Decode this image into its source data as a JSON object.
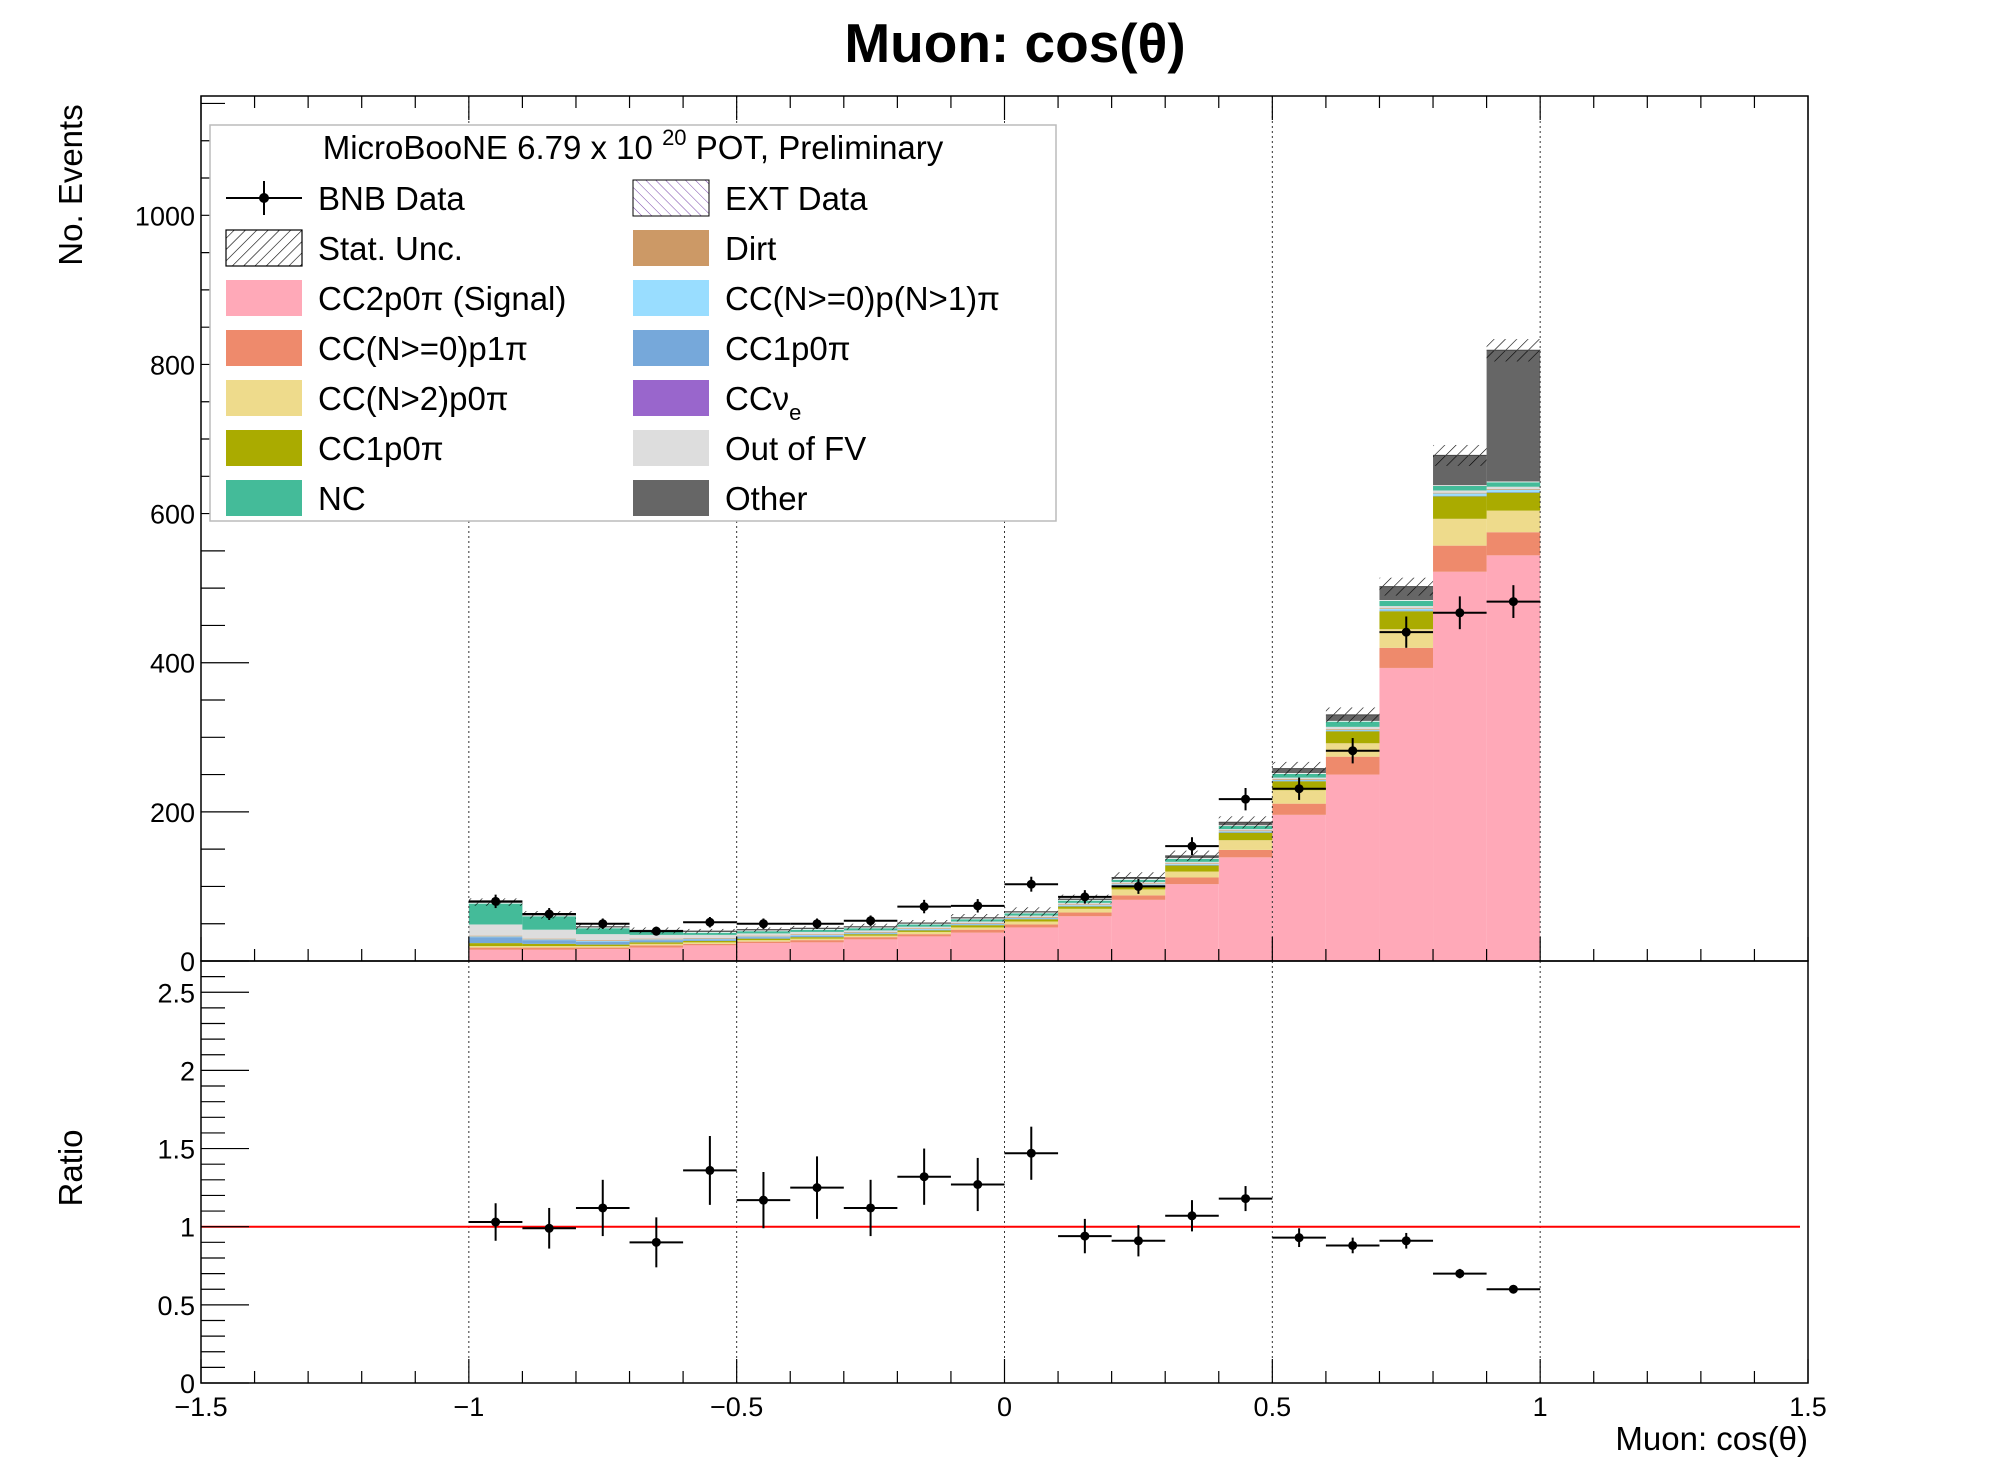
{
  "chart_data": {
    "type": "bar",
    "title": "Muon: cos(θ)",
    "xlabel": "Muon: cos(θ)",
    "ylabel_top": "No. Events",
    "ylabel_bottom": "Ratio",
    "xlim": [
      -1.5,
      1.5
    ],
    "ylim_top": [
      0,
      1160
    ],
    "ylim_bottom": [
      0,
      2.7
    ],
    "x_ticks": [
      -1.5,
      -1,
      -0.5,
      0,
      0.5,
      1,
      1.5
    ],
    "x_tick_labels": [
      "−1.5",
      "−1",
      "−0.5",
      "0",
      "0.5",
      "1",
      "1.5"
    ],
    "y_ticks_top": [
      0,
      200,
      400,
      600,
      800,
      1000
    ],
    "y_tick_labels_top": [
      "0",
      "200",
      "400",
      "600",
      "800",
      "1000"
    ],
    "y_ticks_bottom": [
      0,
      0.5,
      1,
      1.5,
      2,
      2.5
    ],
    "y_tick_labels_bottom": [
      "0",
      "0.5",
      "1",
      "1.5",
      "2",
      "2.5"
    ],
    "grid": "vertical dotted at major x ticks",
    "legend_placement": "top-left",
    "legend_header": "MicroBooNE 6.79 x 10",
    "legend_header_exp": "20",
    "legend_header_tail": " POT, Preliminary",
    "bin_edges": [
      -1,
      -0.9,
      -0.8,
      -0.7,
      -0.6,
      -0.5,
      -0.4,
      -0.3,
      -0.2,
      -0.1,
      0,
      0.1,
      0.2,
      0.3,
      0.4,
      0.5,
      0.6,
      0.7,
      0.8,
      0.9,
      1.0
    ],
    "stack": [
      {
        "name": "CC2p0π (Signal)",
        "color": "#ffa9b8",
        "values": [
          15,
          15,
          16,
          18,
          21,
          24,
          25,
          29,
          33,
          38,
          45,
          60,
          82,
          103,
          139,
          196,
          250,
          393,
          522,
          544
        ]
      },
      {
        "name": "CC(N>=0)p1π",
        "color": "#ee8a6c",
        "values": [
          3,
          3,
          2,
          3,
          2,
          2,
          3,
          3,
          3,
          4,
          4,
          5,
          6,
          9,
          10,
          15,
          24,
          27,
          35,
          31
        ]
      },
      {
        "name": "CC(N>2)p0π",
        "color": "#eedb8c",
        "values": [
          2,
          2,
          2,
          2,
          2,
          2,
          2,
          2,
          3,
          3,
          4,
          5,
          8,
          8,
          13,
          18,
          18,
          25,
          36,
          29
        ]
      },
      {
        "name": "CC1p0π",
        "color": "#aaab00",
        "values": [
          4,
          3,
          2,
          2,
          2,
          2,
          2,
          2,
          2,
          3,
          3,
          3,
          5,
          8,
          10,
          12,
          16,
          24,
          30,
          24
        ]
      },
      {
        "name": "CC1p0π",
        "color": "#76a8da",
        "values": [
          8,
          5,
          4,
          3,
          2,
          2,
          2,
          1,
          1,
          1,
          1,
          1,
          1,
          1,
          1,
          1,
          1,
          1,
          1,
          1
        ]
      },
      {
        "name": "CC(N>=0)p(N>1)π",
        "color": "#99ddff",
        "values": [
          1,
          1,
          1,
          1,
          1,
          1,
          1,
          1,
          1,
          1,
          1,
          1,
          1,
          1,
          1,
          1,
          1,
          2,
          3,
          3
        ]
      },
      {
        "name": "CCνe",
        "color": "#9966cc",
        "values": [
          0,
          0,
          0,
          0,
          0,
          0,
          0,
          0,
          0,
          0,
          0,
          0,
          0,
          0,
          0,
          0,
          0,
          0,
          0,
          0
        ]
      },
      {
        "name": "Dirt",
        "color": "#cc9966",
        "values": [
          1,
          1,
          1,
          1,
          1,
          1,
          1,
          1,
          1,
          1,
          1,
          1,
          1,
          1,
          1,
          1,
          1,
          1,
          1,
          1
        ]
      },
      {
        "name": "Out of FV",
        "color": "#dddddd",
        "values": [
          15,
          12,
          8,
          5,
          4,
          3,
          3,
          2,
          2,
          2,
          2,
          2,
          2,
          2,
          2,
          2,
          3,
          3,
          3,
          3
        ]
      },
      {
        "name": "NC",
        "color": "#44bb99",
        "values": [
          28,
          18,
          8,
          4,
          3,
          3,
          3,
          3,
          3,
          3,
          3,
          3,
          3,
          4,
          4,
          5,
          7,
          7,
          6,
          6
        ]
      },
      {
        "name": "EXT Data",
        "color": "#ffffff",
        "values": [
          1,
          1,
          1,
          1,
          1,
          1,
          1,
          1,
          1,
          1,
          1,
          1,
          1,
          1,
          1,
          1,
          1,
          1,
          1,
          1
        ]
      },
      {
        "name": "Other",
        "color": "#666666",
        "values": [
          1,
          1,
          1,
          1,
          1,
          1,
          1,
          1,
          1,
          1,
          1,
          1,
          2,
          3,
          4,
          6,
          8,
          18,
          40,
          176
        ]
      }
    ],
    "stat_unc": [
      5,
      5,
      4,
      4,
      3,
      3,
      3,
      4,
      4,
      5,
      6,
      6,
      7,
      7,
      8,
      9,
      10,
      12,
      14,
      15
    ],
    "data": {
      "name": "BNB Data",
      "x": [
        -0.95,
        -0.85,
        -0.75,
        -0.65,
        -0.55,
        -0.45,
        -0.35,
        -0.25,
        -0.15,
        -0.05,
        0.05,
        0.15,
        0.25,
        0.35,
        0.45,
        0.55,
        0.65,
        0.75,
        0.85,
        0.95
      ],
      "values": [
        80,
        63,
        50,
        40,
        52,
        50,
        50,
        54,
        73,
        74,
        103,
        86,
        100,
        154,
        217,
        231,
        282,
        441,
        467,
        482
      ],
      "errors": [
        9,
        8,
        7,
        6,
        7,
        7,
        7,
        7,
        9,
        9,
        10,
        9,
        10,
        12,
        15,
        15,
        17,
        21,
        22,
        22
      ]
    },
    "ratio": {
      "values": [
        1.03,
        0.99,
        1.12,
        0.9,
        1.36,
        1.17,
        1.25,
        1.12,
        1.32,
        1.27,
        1.47,
        0.94,
        0.91,
        1.07,
        1.18,
        0.93,
        0.88,
        0.91,
        0.7,
        0.6
      ],
      "errors": [
        0.12,
        0.13,
        0.18,
        0.16,
        0.22,
        0.18,
        0.2,
        0.18,
        0.18,
        0.17,
        0.17,
        0.11,
        0.1,
        0.1,
        0.08,
        0.06,
        0.05,
        0.05,
        0.03,
        0.02
      ],
      "reference_line": 1,
      "reference_color": "#ff0000"
    },
    "legend": [
      {
        "label": "BNB Data",
        "kind": "marker"
      },
      {
        "label": "EXT Data",
        "kind": "hatch-purple"
      },
      {
        "label": "Stat. Unc.",
        "kind": "hatch"
      },
      {
        "label": "Dirt",
        "kind": "fill",
        "color": "#cc9966"
      },
      {
        "label": "CC2p0π (Signal)",
        "kind": "fill",
        "color": "#ffa9b8"
      },
      {
        "label": "CC(N>=0)p(N>1)π",
        "kind": "fill",
        "color": "#99ddff"
      },
      {
        "label": "CC(N>=0)p1π",
        "kind": "fill",
        "color": "#ee8a6c"
      },
      {
        "label": "CC1p0π",
        "kind": "fill",
        "color": "#76a8da"
      },
      {
        "label": "CC(N>2)p0π",
        "kind": "fill",
        "color": "#eedb8c"
      },
      {
        "label": "CCνe",
        "kind": "fill",
        "color": "#9966cc"
      },
      {
        "label": "CC1p0π",
        "kind": "fill",
        "color": "#aaab00"
      },
      {
        "label": "Out of FV",
        "kind": "fill",
        "color": "#dddddd"
      },
      {
        "label": "NC",
        "kind": "fill",
        "color": "#44bb99"
      },
      {
        "label": "Other",
        "kind": "fill",
        "color": "#666666"
      }
    ]
  }
}
